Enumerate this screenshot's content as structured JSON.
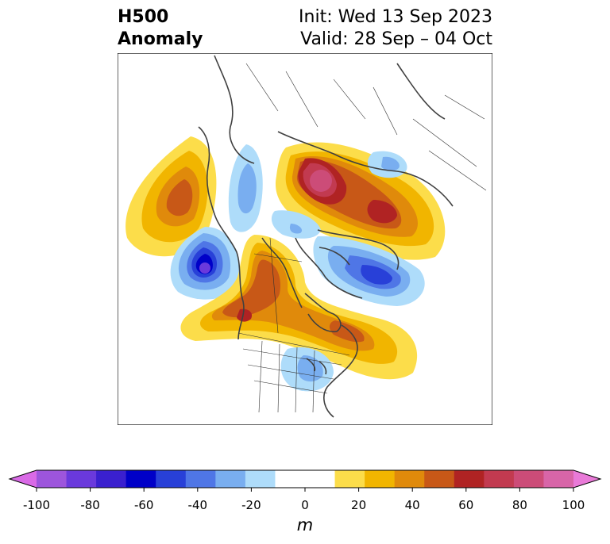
{
  "header": {
    "title_line1": "H500",
    "title_line2": "Anomaly",
    "init": "Init: Wed 13 Sep 2023",
    "valid": "Valid: 28 Sep – 04 Oct"
  },
  "colorbar": {
    "unit": "m",
    "tick_labels": [
      "-100",
      "-80",
      "-60",
      "-40",
      "-20",
      "0",
      "20",
      "40",
      "60",
      "80",
      "100"
    ],
    "colors": [
      "#d96ae6",
      "#9d55dc",
      "#6a39dc",
      "#3a20cf",
      "#0000c8",
      "#2840d8",
      "#4f76e6",
      "#79aef0",
      "#aedcfa",
      "#ffffff",
      "#ffffff",
      "#fcdd4a",
      "#f1b500",
      "#e08a0b",
      "#c85817",
      "#b02323",
      "#c23a50",
      "#cc4c78",
      "#d865a8",
      "#e97ad8"
    ],
    "range": [
      -100,
      100
    ],
    "interval": 10
  },
  "map": {
    "projection": "polar stereographic, North America / North Pole",
    "field": "500 hPa geopotential height anomaly"
  }
}
